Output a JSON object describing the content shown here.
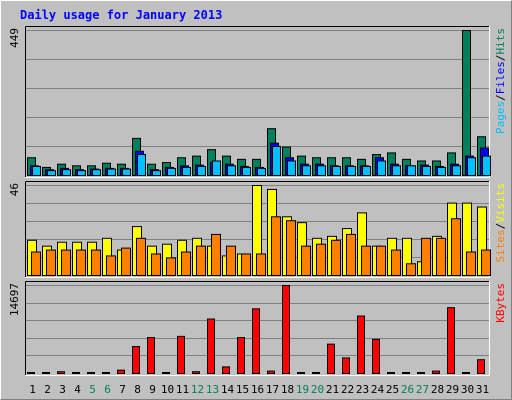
{
  "title": "Daily usage for January 2013",
  "colors": {
    "background": "#c0c0c0",
    "plot_bg": "#c0c0c0",
    "title": "#0000ff",
    "hits": "#00805c",
    "files": "#0000ff",
    "pages": "#00c0ff",
    "visits": "#ffff00",
    "sites": "#ff8000",
    "kbytes": "#ff0000",
    "weekday_label": "#000000",
    "weekend_label": "#00805c"
  },
  "chart_data": [
    {
      "type": "bar",
      "panel": "hits-files-pages",
      "ymax_label": "449",
      "ymax": 449,
      "legend": [
        {
          "name": "Pages",
          "color_key": "pages"
        },
        {
          "name": "Files",
          "color_key": "files"
        },
        {
          "name": "Hits",
          "color_key": "hits"
        }
      ],
      "series": [
        {
          "name": "Hits",
          "values": [
            55,
            25,
            35,
            30,
            30,
            38,
            35,
            115,
            35,
            40,
            55,
            60,
            80,
            60,
            50,
            50,
            145,
            88,
            60,
            55,
            55,
            55,
            50,
            65,
            70,
            50,
            45,
            45,
            70,
            449,
            120
          ]
        },
        {
          "name": "Files",
          "values": [
            30,
            18,
            22,
            18,
            20,
            22,
            22,
            75,
            18,
            25,
            30,
            32,
            40,
            35,
            28,
            25,
            100,
            55,
            35,
            35,
            30,
            30,
            30,
            55,
            35,
            30,
            32,
            28,
            35,
            60,
            85
          ]
        },
        {
          "name": "Pages",
          "values": [
            28,
            15,
            18,
            15,
            18,
            20,
            20,
            65,
            15,
            22,
            25,
            28,
            45,
            30,
            25,
            22,
            90,
            45,
            30,
            30,
            28,
            28,
            28,
            45,
            30,
            30,
            28,
            25,
            30,
            55,
            60
          ]
        }
      ]
    },
    {
      "type": "bar",
      "panel": "visits-sites",
      "ymax_label": "46",
      "ymax": 46,
      "legend": [
        {
          "name": "Sites",
          "color_key": "sites"
        },
        {
          "name": "Visits",
          "color_key": "visits"
        }
      ],
      "series": [
        {
          "name": "Visits",
          "values": [
            18,
            15,
            17,
            17,
            17,
            19,
            13,
            25,
            15,
            16,
            18,
            19,
            15,
            10,
            11,
            46,
            44,
            30,
            27,
            19,
            20,
            24,
            32,
            15,
            19,
            19,
            7,
            20,
            37,
            37,
            35
          ]
        },
        {
          "name": "Sites",
          "values": [
            12,
            13,
            13,
            13,
            13,
            10,
            14,
            19,
            11,
            9,
            12,
            15,
            21,
            15,
            11,
            11,
            30,
            28,
            15,
            16,
            18,
            21,
            15,
            15,
            13,
            6,
            19,
            19,
            29,
            12,
            13
          ]
        }
      ]
    },
    {
      "type": "bar",
      "panel": "kbytes",
      "ymax_label": "14697",
      "ymax": 14697,
      "legend": [
        {
          "name": "KBytes",
          "color_key": "kbytes"
        }
      ],
      "series": [
        {
          "name": "KBytes",
          "values": [
            60,
            60,
            300,
            60,
            60,
            60,
            560,
            4500,
            6000,
            60,
            6200,
            300,
            9100,
            1100,
            6000,
            10800,
            400,
            14697,
            60,
            60,
            4900,
            2600,
            9600,
            5700,
            160,
            160,
            60,
            400,
            11000,
            60,
            2300
          ]
        }
      ]
    }
  ],
  "days": [
    "1",
    "2",
    "3",
    "4",
    "5",
    "6",
    "7",
    "8",
    "9",
    "10",
    "11",
    "12",
    "13",
    "14",
    "15",
    "16",
    "17",
    "18",
    "19",
    "20",
    "21",
    "22",
    "23",
    "24",
    "25",
    "26",
    "27",
    "28",
    "29",
    "30",
    "31"
  ],
  "weekend_days": [
    5,
    6,
    12,
    13,
    19,
    20,
    26,
    27
  ]
}
